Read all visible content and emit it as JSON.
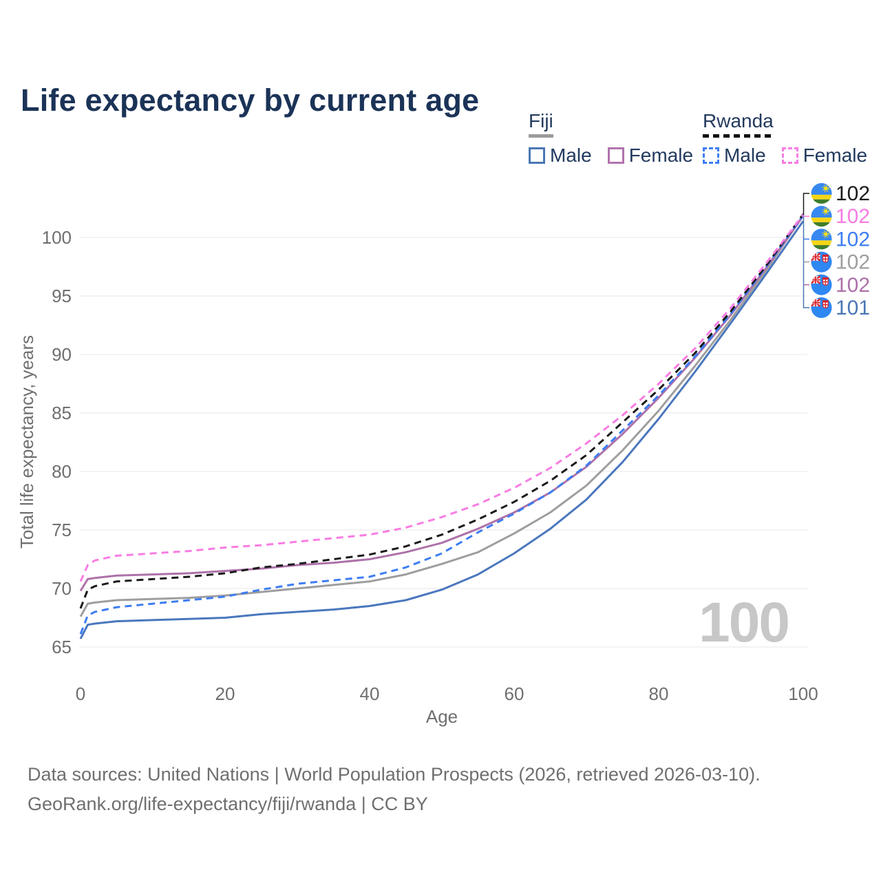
{
  "page": {
    "title": "Life expectancy by current age"
  },
  "legend": {
    "groups": [
      {
        "country": "Fiji",
        "line_style": "solid",
        "underline_color": "#9b9b9b",
        "items": [
          {
            "label": "Male",
            "color": "#4a77b5"
          },
          {
            "label": "Female",
            "color": "#b273ad"
          }
        ]
      },
      {
        "country": "Rwanda",
        "line_style": "dashed",
        "underline_color": "#1a1a1a",
        "items": [
          {
            "label": "Male",
            "color": "#3d7df2"
          },
          {
            "label": "Female",
            "color": "#f87ce3"
          }
        ]
      }
    ]
  },
  "chart_data": {
    "type": "line",
    "title": "Life expectancy by current age",
    "xlabel": "Age",
    "ylabel": "Total life expectancy, years",
    "x_ticks": [
      0,
      20,
      40,
      60,
      80,
      100
    ],
    "y_ticks": [
      65,
      70,
      75,
      80,
      85,
      90,
      95,
      100
    ],
    "xlim": [
      0,
      100
    ],
    "ylim": [
      65,
      102
    ],
    "grid": "horizontal",
    "legend_position": "top-right",
    "hover_age_watermark": "100",
    "x": [
      0,
      1,
      2,
      5,
      10,
      15,
      20,
      25,
      30,
      35,
      40,
      45,
      50,
      55,
      60,
      65,
      70,
      75,
      80,
      85,
      90,
      95,
      100
    ],
    "series": [
      {
        "id": "fiji-male",
        "name": "Fiji Male",
        "color": "#4a77bd",
        "dashed": false,
        "values": [
          65.7,
          66.9,
          67.0,
          67.2,
          67.3,
          67.4,
          67.5,
          67.8,
          68.0,
          68.2,
          68.5,
          69.0,
          69.9,
          71.2,
          73.0,
          75.1,
          77.6,
          80.8,
          84.5,
          88.5,
          92.7,
          97.0,
          101.4
        ]
      },
      {
        "id": "fiji-total",
        "name": "Fiji",
        "color": "#9e9e9e",
        "dashed": false,
        "values": [
          67.6,
          68.7,
          68.8,
          69.0,
          69.1,
          69.2,
          69.4,
          69.7,
          70.0,
          70.3,
          70.6,
          71.2,
          72.1,
          73.1,
          74.7,
          76.5,
          78.8,
          81.8,
          85.2,
          89.0,
          93.0,
          97.3,
          101.88
        ]
      },
      {
        "id": "fiji-female",
        "name": "Fiji Female",
        "color": "#ad71a9",
        "dashed": false,
        "values": [
          69.8,
          70.8,
          70.9,
          71.1,
          71.2,
          71.3,
          71.5,
          71.7,
          72.0,
          72.2,
          72.5,
          73.1,
          73.9,
          75.1,
          76.5,
          78.2,
          80.4,
          83.2,
          86.3,
          89.7,
          93.4,
          97.5,
          101.85
        ]
      },
      {
        "id": "rwanda-male",
        "name": "Rwanda Male",
        "color": "#3d7df2",
        "dashed": true,
        "values": [
          66.1,
          67.7,
          68.0,
          68.4,
          68.7,
          69.0,
          69.3,
          69.9,
          70.4,
          70.7,
          71.0,
          71.8,
          73.0,
          74.8,
          76.4,
          78.2,
          80.5,
          83.5,
          86.5,
          89.8,
          93.5,
          97.6,
          101.9
        ]
      },
      {
        "id": "rwanda-total",
        "name": "Rwanda",
        "color": "#1a1a1a",
        "dashed": true,
        "values": [
          68.3,
          69.9,
          70.2,
          70.6,
          70.8,
          71.0,
          71.3,
          71.8,
          72.1,
          72.5,
          72.9,
          73.6,
          74.6,
          75.9,
          77.4,
          79.2,
          81.4,
          84.2,
          87.0,
          90.1,
          93.7,
          97.7,
          102.0
        ]
      },
      {
        "id": "rwanda-female",
        "name": "Rwanda Female",
        "color": "#f87ce3",
        "dashed": true,
        "values": [
          70.6,
          72.0,
          72.4,
          72.8,
          73.0,
          73.2,
          73.5,
          73.7,
          74.0,
          74.3,
          74.6,
          75.2,
          76.1,
          77.2,
          78.6,
          80.3,
          82.4,
          84.8,
          87.5,
          90.5,
          94.0,
          97.9,
          101.95
        ]
      }
    ],
    "end_labels": [
      {
        "flag": "rwanda",
        "text": "102",
        "color": "#1a1a1a"
      },
      {
        "flag": "rwanda",
        "text": "102",
        "color": "#f87ce3"
      },
      {
        "flag": "rwanda",
        "text": "102",
        "color": "#3d7df2"
      },
      {
        "flag": "fiji",
        "text": "102",
        "color": "#9e9e9e"
      },
      {
        "flag": "fiji",
        "text": "102",
        "color": "#ad71a9"
      },
      {
        "flag": "fiji",
        "text": "101",
        "color": "#4a77b5"
      }
    ]
  },
  "footer": {
    "line1": "Data sources: United Nations | World Population Prospects (2026, retrieved 2026-03-10).",
    "line2": "GeoRank.org/life-expectancy/fiji/rwanda | CC BY"
  }
}
